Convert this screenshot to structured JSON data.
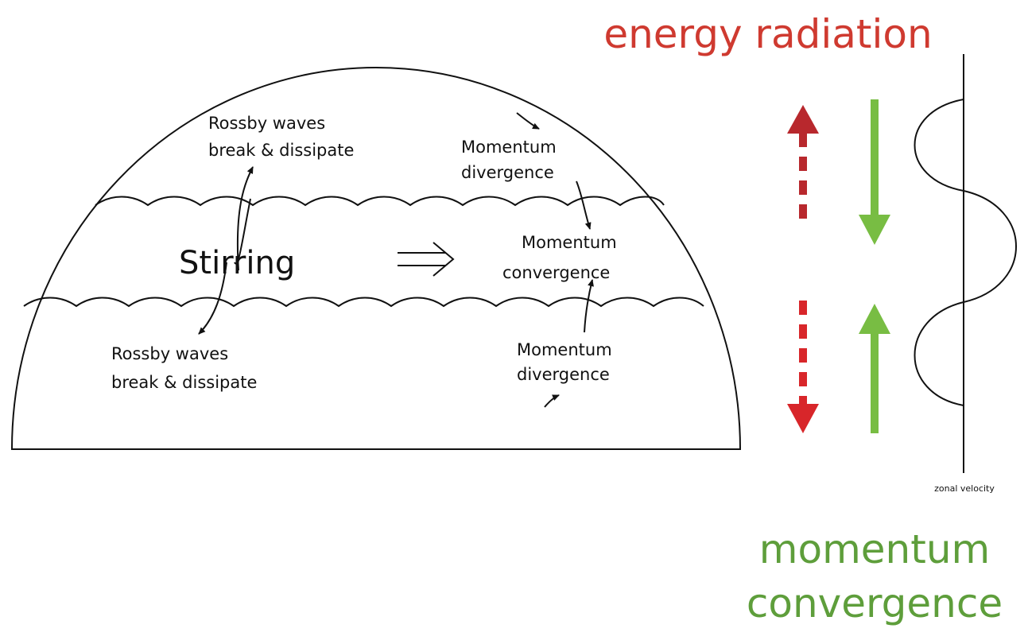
{
  "title": "energy radiation",
  "hemisphere": {
    "upper_break": [
      "Rossby waves",
      "break & dissipate"
    ],
    "upper_divergence": [
      "Momentum",
      "divergence"
    ],
    "stirring": "Stirring",
    "convergence": [
      "Momentum",
      "convergence"
    ],
    "lower_break": [
      "Rossby waves",
      "break & dissipate"
    ],
    "lower_divergence": [
      "Momentum",
      "divergence"
    ]
  },
  "profile_axis_label": "zonal velocity",
  "footer": [
    "momentum",
    "convergence"
  ]
}
